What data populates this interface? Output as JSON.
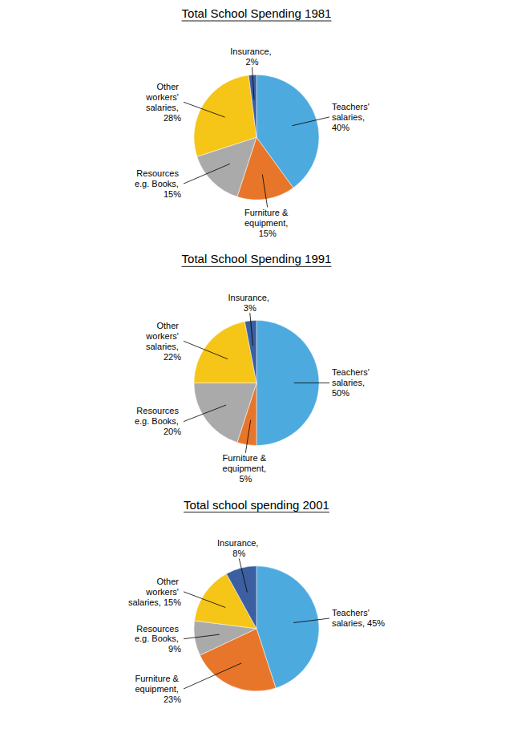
{
  "chart_data": [
    {
      "type": "pie",
      "title": "Total School Spending 1981",
      "values": [
        40,
        15,
        15,
        28,
        2
      ],
      "value_labels": [
        "Teachers'\nsalaries,\n40%",
        "Furniture &\nequipment,\n15%",
        "Resources\ne.g. Books,\n15%",
        "Other\nworkers'\nsalaries,\n28%",
        "Insurance,\n2%"
      ],
      "colors": [
        "#4DAADF",
        "#E8762A",
        "#AAAAAA",
        "#F5C518",
        "#3B5FA0"
      ]
    },
    {
      "type": "pie",
      "title": "Total School Spending 1991",
      "values": [
        50,
        5,
        20,
        22,
        3
      ],
      "value_labels": [
        "Teachers'\nsalaries,\n50%",
        "Furniture &\nequipment,\n5%",
        "Resources\ne.g. Books,\n20%",
        "Other\nworkers'\nsalaries,\n22%",
        "Insurance,\n3%"
      ],
      "colors": [
        "#4DAADF",
        "#E8762A",
        "#AAAAAA",
        "#F5C518",
        "#3B5FA0"
      ]
    },
    {
      "type": "pie",
      "title": "Total school spending 2001",
      "values": [
        45,
        23,
        9,
        15,
        8
      ],
      "value_labels": [
        "Teachers'\nsalaries, 45%",
        "Furniture &\nequipment,\n23%",
        "Resources\ne.g. Books,\n9%",
        "Other\nworkers'\nsalaries, 15%",
        "Insurance,\n8%"
      ],
      "colors": [
        "#4DAADF",
        "#E8762A",
        "#AAAAAA",
        "#F5C518",
        "#3B5FA0"
      ]
    }
  ]
}
